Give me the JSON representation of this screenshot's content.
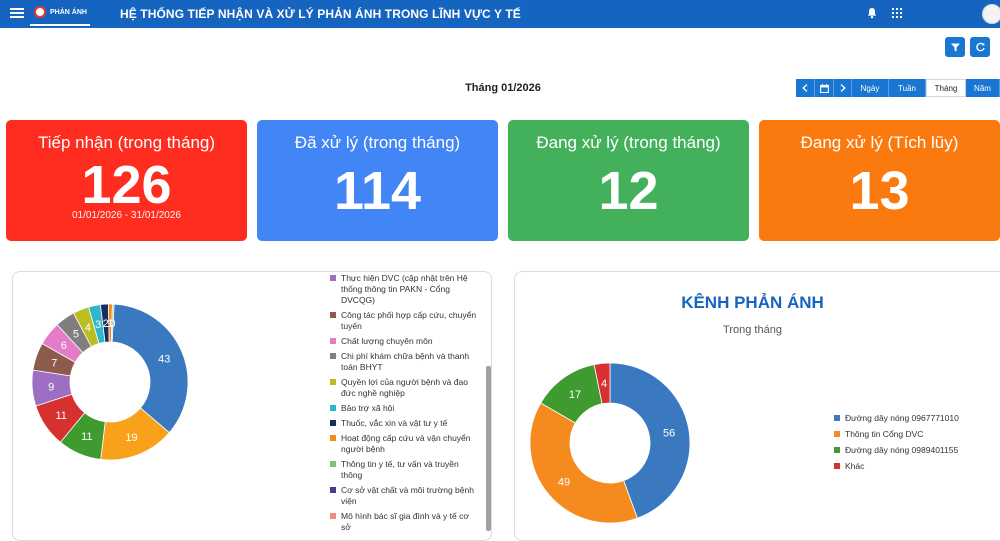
{
  "header": {
    "brand": "PHẢN ÁNH",
    "title": "HỆ THỐNG TIẾP NHẬN VÀ XỬ LÝ PHẢN ÁNH TRONG LĨNH VỰC Y TẾ"
  },
  "toolbar": {
    "month_label": "Tháng 01/2026",
    "period_buttons": [
      "Ngày",
      "Tuần",
      "Tháng",
      "Năm"
    ],
    "active_period": "Tháng"
  },
  "cards": [
    {
      "title": "Tiếp nhận (trong tháng)",
      "value": "126",
      "range": "01/01/2026 - 31/01/2026",
      "color": "#ff2d1f"
    },
    {
      "title": "Đã xử lý (trong tháng)",
      "value": "114",
      "range": "",
      "color": "#4285f4"
    },
    {
      "title": "Đang xử lý (trong tháng)",
      "value": "12",
      "range": "",
      "color": "#43b05c"
    },
    {
      "title": "Đang xử lý (Tích lũy)",
      "value": "13",
      "range": "",
      "color": "#fa7a0f"
    }
  ],
  "chart_data": [
    {
      "type": "pie",
      "title": "",
      "categories": [
        "Thực hiện DVC (cập nhật trên Hệ thống thông tin PAKN - Cổng DVCQG)",
        "Công tác phối hợp cấp cứu, chuyển tuyến",
        "Chất lượng chuyên môn",
        "Chi phí khám chữa bệnh và thanh toán BHYT",
        "Quyền lợi của người bệnh và đạo đức nghề nghiệp",
        "Bảo trợ xã hội",
        "Thuốc, vắc xin và vật tư y tế",
        "Hoạt động cấp cứu và vận chuyển người bệnh",
        "Thông tin y tế, tư vấn và truyền thông",
        "Cơ sở vật chất và môi trường bệnh viện",
        "Mô hình bác sĩ gia đình và y tế cơ sở"
      ],
      "slices": [
        {
          "value": 43,
          "color": "#3a78c0",
          "label": "43"
        },
        {
          "value": 19,
          "color": "#f9a11b",
          "label": "19"
        },
        {
          "value": 11,
          "color": "#3f9a2f",
          "label": "11"
        },
        {
          "value": 11,
          "color": "#d6302f",
          "label": "11"
        },
        {
          "value": 9,
          "color": "#9c6fc3",
          "label": "9"
        },
        {
          "value": 7,
          "color": "#8d5b4c",
          "label": "7"
        },
        {
          "value": 6,
          "color": "#e47cc7",
          "label": "6"
        },
        {
          "value": 5,
          "color": "#7f7f7f",
          "label": "5"
        },
        {
          "value": 4,
          "color": "#bcbd22",
          "label": "4"
        },
        {
          "value": 3,
          "color": "#2fb7c9",
          "label": "3"
        },
        {
          "value": 2,
          "color": "#162f5e",
          "label": "2"
        },
        {
          "value": 1,
          "color": "#f28b1c",
          "label": "1"
        },
        {
          "value": 0.4,
          "color": "#7fc464",
          "label": "0"
        }
      ],
      "legend": [
        {
          "label": "Thực hiện DVC (cập nhật trên Hệ thống thông tin PAKN - Cổng DVCQG)",
          "color": "#9c6fc3"
        },
        {
          "label": "Công tác phối hợp cấp cứu, chuyển tuyến",
          "color": "#8d5b4c"
        },
        {
          "label": "Chất lượng chuyên môn",
          "color": "#e47cc7"
        },
        {
          "label": "Chi phí khám chữa bệnh và thanh toán BHYT",
          "color": "#7f7f7f"
        },
        {
          "label": "Quyền lợi của người bệnh và đạo đức nghề nghiệp",
          "color": "#bcbd22"
        },
        {
          "label": "Bảo trợ xã hội",
          "color": "#2fb7c9"
        },
        {
          "label": "Thuốc, vắc xin và vật tư y tế",
          "color": "#162f5e"
        },
        {
          "label": "Hoạt động cấp cứu và vận chuyển người bệnh",
          "color": "#f28b1c"
        },
        {
          "label": "Thông tin y tế, tư vấn và truyền thông",
          "color": "#7fc464"
        },
        {
          "label": "Cơ sở vật chất và môi trường bệnh viện",
          "color": "#4b3a8c"
        },
        {
          "label": "Mô hình bác sĩ gia đình và y tế cơ sở",
          "color": "#f08a7e"
        }
      ]
    },
    {
      "type": "pie",
      "title": "KÊNH PHẢN ÁNH",
      "subtitle": "Trong tháng",
      "slices": [
        {
          "value": 56,
          "color": "#3a78c0",
          "label": "56",
          "name": "Đường dây nóng 0967771010"
        },
        {
          "value": 49,
          "color": "#f58a1f",
          "label": "49",
          "name": "Thông tin Cổng DVC"
        },
        {
          "value": 17,
          "color": "#3f9a2f",
          "label": "17",
          "name": "Đường dây nóng 0989401155"
        },
        {
          "value": 4,
          "color": "#d6302f",
          "label": "4",
          "name": "Khác"
        }
      ],
      "legend_position": "right"
    }
  ]
}
